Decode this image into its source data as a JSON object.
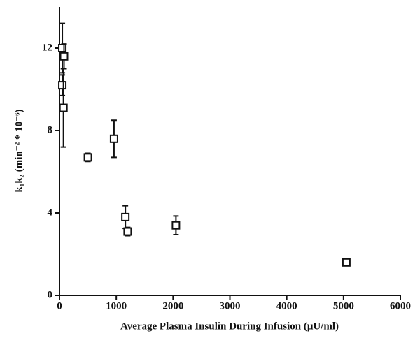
{
  "chart_data": {
    "type": "scatter",
    "x_label": "Average Plasma Insulin During Infusion (μU/ml)",
    "y_label": "k₁k₂ (min⁻² * 10⁻⁶)",
    "series": [
      {
        "x": [
          50,
          80,
          50,
          70,
          500,
          960,
          1160,
          1200,
          2050,
          5050
        ],
        "values": [
          12.0,
          11.6,
          10.2,
          9.1,
          6.7,
          7.6,
          3.8,
          3.1,
          3.4,
          1.6
        ],
        "errors": [
          1.2,
          0.6,
          0.5,
          1.9,
          0.2,
          0.9,
          0.55,
          0.2,
          0.45,
          0
        ],
        "color": "#111111"
      }
    ],
    "xlim": [
      0,
      6000
    ],
    "xticks": [
      0,
      1000,
      2000,
      3000,
      4000,
      5000,
      6000
    ],
    "ylim": [
      0,
      14
    ],
    "yticks": [
      0,
      4,
      8,
      12
    ]
  }
}
